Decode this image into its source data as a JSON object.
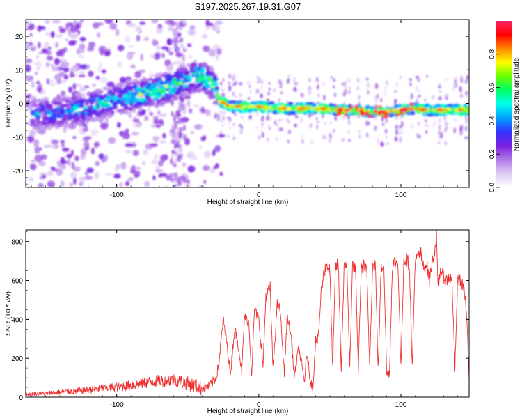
{
  "title": "S197.2025.267.19.31.G07",
  "chart_data": [
    {
      "type": "heatmap",
      "name": "spectrogram",
      "xlabel": "Height of straight line (km)",
      "ylabel": "Frequency (Hz)",
      "xlim": [
        -164,
        148
      ],
      "ylim": [
        -25,
        25
      ],
      "x_ticks": [
        -100,
        0,
        100
      ],
      "y_ticks": [
        -20,
        -10,
        0,
        10,
        20
      ],
      "colorbar": {
        "label": "Normalized spectral amplitude",
        "range": [
          0.0,
          1.0
        ],
        "ticks": [
          0.0,
          0.2,
          0.4,
          0.6,
          0.8
        ],
        "tick_labels": [
          "0.0",
          "0.2",
          "0.4",
          "0.6",
          "0.8"
        ],
        "colors": [
          "#ffffff",
          "#e0ccf5",
          "#b07ae8",
          "#7d1fe0",
          "#3333ff",
          "#00a0ff",
          "#00ffee",
          "#00ff66",
          "#66ff00",
          "#ffff00",
          "#ff8800",
          "#ff0000",
          "#ff2266"
        ]
      },
      "ridge": {
        "x": [
          -150,
          -130,
          -110,
          -90,
          -70,
          -55,
          -45,
          -40,
          -35,
          -30,
          -28,
          -20,
          -10,
          0,
          20,
          40,
          60,
          80,
          90,
          100,
          110,
          120,
          130,
          145
        ],
        "y": [
          -3,
          -2,
          0,
          2,
          4,
          6,
          8,
          8,
          7,
          4,
          1,
          -1,
          -1,
          -1,
          -1.5,
          -1.5,
          -2,
          -2.5,
          -2.5,
          -2,
          -1.5,
          -2,
          -2,
          -2
        ]
      }
    },
    {
      "type": "line",
      "name": "snr",
      "xlabel": "Height of straight line (km)",
      "ylabel": "SNR (10 * v/v)",
      "xlim": [
        -164,
        148
      ],
      "ylim": [
        0,
        860
      ],
      "x_ticks": [
        -100,
        0,
        100
      ],
      "y_ticks": [
        0,
        200,
        400,
        600,
        800
      ],
      "line_color": "#ee3333",
      "x": [
        -164,
        -150,
        -130,
        -110,
        -90,
        -75,
        -60,
        -50,
        -45,
        -40,
        -35,
        -30,
        -28,
        -25,
        -22,
        -20,
        -17,
        -15,
        -12,
        -10,
        -7,
        -5,
        -3,
        0,
        3,
        5,
        8,
        10,
        13,
        15,
        18,
        20,
        23,
        25,
        28,
        30,
        32,
        34,
        36,
        38,
        40,
        41,
        42,
        44,
        46,
        48,
        50,
        52,
        54,
        56,
        58,
        60,
        62,
        64,
        66,
        68,
        70,
        72,
        74,
        76,
        78,
        80,
        82,
        84,
        86,
        88,
        90,
        92,
        94,
        96,
        98,
        100,
        102,
        104,
        106,
        108,
        110,
        112,
        114,
        116,
        118,
        120,
        122,
        124,
        125,
        126,
        128,
        130,
        132,
        134,
        136,
        138,
        140,
        142,
        144,
        146,
        148
      ],
      "y": [
        15,
        20,
        30,
        45,
        60,
        80,
        90,
        70,
        60,
        45,
        55,
        100,
        180,
        400,
        250,
        120,
        350,
        300,
        130,
        420,
        380,
        120,
        450,
        400,
        160,
        520,
        560,
        140,
        480,
        450,
        120,
        420,
        300,
        100,
        250,
        180,
        80,
        220,
        100,
        40,
        300,
        280,
        320,
        550,
        650,
        680,
        650,
        150,
        670,
        680,
        140,
        660,
        690,
        150,
        680,
        660,
        140,
        650,
        680,
        640,
        160,
        670,
        690,
        140,
        650,
        690,
        120,
        130,
        680,
        700,
        680,
        150,
        700,
        710,
        680,
        150,
        700,
        720,
        740,
        660,
        690,
        600,
        700,
        760,
        850,
        560,
        660,
        620,
        600,
        620,
        590,
        150,
        610,
        600,
        570,
        450,
        100
      ]
    }
  ]
}
